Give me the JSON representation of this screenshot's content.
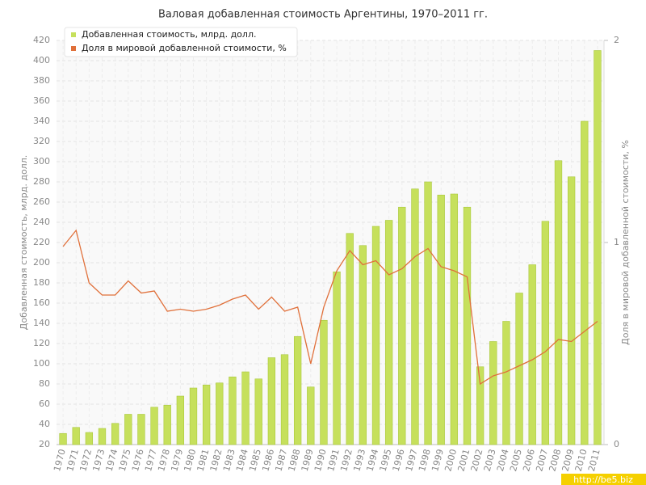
{
  "chart_data": {
    "type": "bar",
    "title": "Валовая добавленная стоимость Аргентины, 1970–2011 гг.",
    "y_label": "Добавленная стоимость, млрд. долл.",
    "y2_label": "Доля в мировой добавленной стоимости, %",
    "watermark": "http://be5.biz",
    "categories": [
      "1970",
      "1971",
      "1972",
      "1973",
      "1974",
      "1975",
      "1976",
      "1977",
      "1978",
      "1979",
      "1980",
      "1981",
      "1982",
      "1983",
      "1984",
      "1985",
      "1986",
      "1987",
      "1988",
      "1989",
      "1990",
      "1991",
      "1992",
      "1993",
      "1994",
      "1995",
      "1996",
      "1997",
      "1998",
      "1999",
      "2000",
      "2001",
      "2002",
      "2003",
      "2004",
      "2005",
      "2006",
      "2007",
      "2008",
      "2009",
      "2010",
      "2011"
    ],
    "series": [
      {
        "name": "Добавленная стоимость, млрд. долл.",
        "color": "#c6e05c",
        "type": "bar",
        "values": [
          31,
          37,
          32,
          36,
          41,
          50,
          50,
          57,
          59,
          68,
          76,
          79,
          81,
          87,
          92,
          85,
          106,
          109,
          127,
          77,
          143,
          191,
          229,
          217,
          236,
          242,
          255,
          273,
          280,
          267,
          268,
          255,
          97,
          122,
          142,
          170,
          198,
          241,
          301,
          285,
          340,
          410
        ]
      },
      {
        "name": "Доля в мировой добавленной стоимости, %",
        "color": "#e0703a",
        "type": "line",
        "axis": "y2",
        "values": [
          0.98,
          1.06,
          0.8,
          0.74,
          0.74,
          0.81,
          0.75,
          0.76,
          0.66,
          0.67,
          0.66,
          0.67,
          0.69,
          0.72,
          0.74,
          0.67,
          0.73,
          0.66,
          0.68,
          0.4,
          0.68,
          0.86,
          0.96,
          0.89,
          0.91,
          0.84,
          0.87,
          0.93,
          0.97,
          0.88,
          0.86,
          0.83,
          0.3,
          0.34,
          0.36,
          0.39,
          0.42,
          0.46,
          0.52,
          0.51,
          0.56,
          0.61
        ]
      }
    ],
    "ylim": [
      20,
      420
    ],
    "yticks": [
      20,
      40,
      60,
      80,
      100,
      120,
      140,
      160,
      180,
      200,
      220,
      240,
      260,
      280,
      300,
      320,
      340,
      360,
      380,
      400,
      420
    ],
    "y2lim": [
      0,
      2
    ],
    "y2ticks": [
      0,
      1,
      2
    ],
    "grid": true
  }
}
